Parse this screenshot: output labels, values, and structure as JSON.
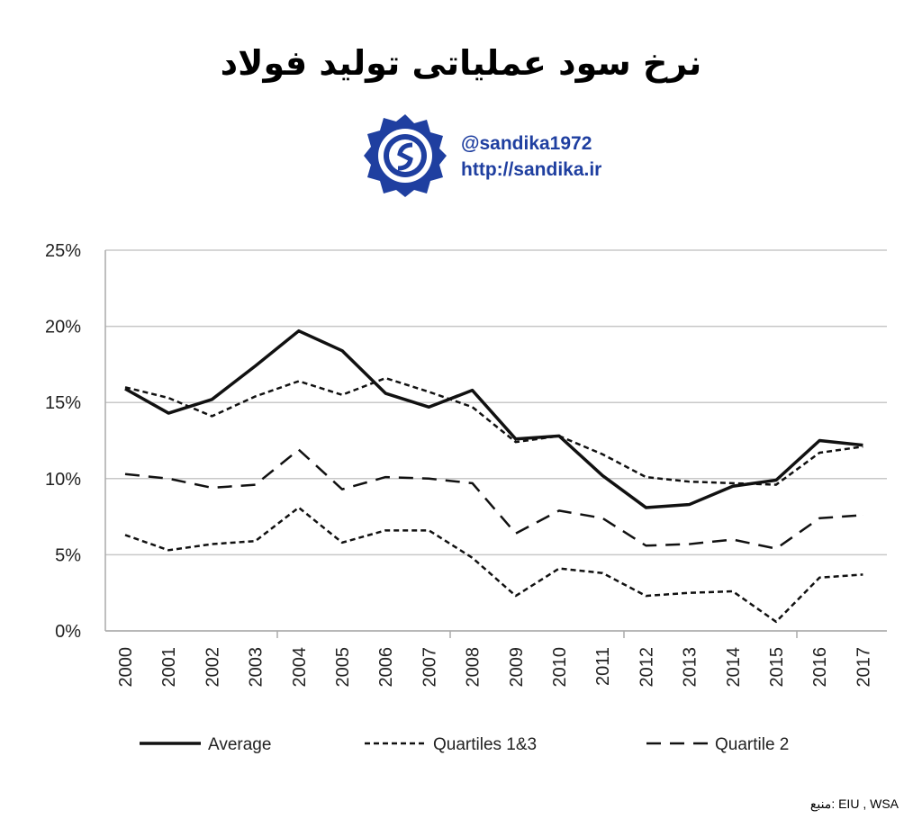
{
  "title": "نرخ سود عملیاتی تولید فولاد",
  "handle": "@sandika1972",
  "website": "http://sandika.ir",
  "source": "منبع: EIU , WSA",
  "logo_color": "#1f3fa0",
  "chart_data": {
    "type": "line",
    "title": "نرخ سود عملیاتی تولید فولاد",
    "xlabel": "",
    "ylabel": "",
    "x": [
      "2000",
      "2001",
      "2002",
      "2003",
      "2004",
      "2005",
      "2006",
      "2007",
      "2008",
      "2009",
      "2010",
      "2011",
      "2012",
      "2013",
      "2014",
      "2015",
      "2016",
      "2017"
    ],
    "ylim": [
      0,
      25
    ],
    "yticks": [
      "0%",
      "5%",
      "10%",
      "15%",
      "20%",
      "25%"
    ],
    "ytick_values": [
      0,
      5,
      10,
      15,
      20,
      25
    ],
    "grid": true,
    "legend_position": "bottom",
    "legend": [
      "Average",
      "Quartiles 1&3",
      "Quartile 2"
    ],
    "series": [
      {
        "name": "Average",
        "style": "solid",
        "values": [
          15.9,
          14.3,
          15.2,
          17.4,
          19.7,
          18.4,
          15.6,
          14.7,
          15.8,
          12.6,
          12.8,
          10.2,
          8.1,
          8.3,
          9.5,
          9.9,
          12.5,
          12.2
        ]
      },
      {
        "name": "Quartiles 1&3",
        "part": "upper",
        "style": "dotted",
        "values": [
          16.0,
          15.3,
          14.1,
          15.4,
          16.4,
          15.5,
          16.6,
          15.7,
          14.7,
          12.4,
          12.8,
          11.6,
          10.1,
          9.8,
          9.7,
          9.6,
          11.7,
          12.1
        ]
      },
      {
        "name": "Quartile 2",
        "style": "dashed",
        "values": [
          10.3,
          10.0,
          9.4,
          9.6,
          11.9,
          9.3,
          10.1,
          10.0,
          9.7,
          6.4,
          7.9,
          7.4,
          5.6,
          5.7,
          6.0,
          5.4,
          7.4,
          7.6
        ]
      },
      {
        "name": "Quartiles 1&3",
        "part": "lower",
        "style": "dotted",
        "values": [
          6.3,
          5.3,
          5.7,
          5.9,
          8.1,
          5.8,
          6.6,
          6.6,
          4.8,
          2.3,
          4.1,
          3.8,
          2.3,
          2.5,
          2.6,
          0.6,
          3.5,
          3.7
        ]
      }
    ]
  }
}
